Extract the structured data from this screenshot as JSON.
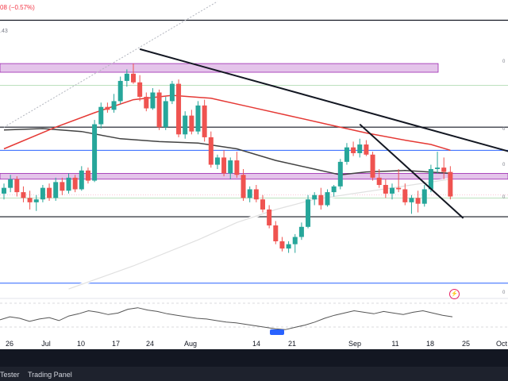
{
  "header": {
    "change_text": "08 (−0.57%)",
    "value_text": ".43"
  },
  "level_labels": [
    "0",
    "0",
    "0",
    "0",
    "0"
  ],
  "bottom_panel": {
    "tabs": [
      "Tester",
      "Trading Panel"
    ]
  },
  "colors": {
    "up": "#26a69a",
    "down": "#ef5350",
    "ma_red": "#e53935",
    "ma_dark": "#424242",
    "ma_white": "#ffffff",
    "zone": "#ce93d8"
  },
  "chart_data": {
    "type": "candlestick",
    "x_ticks": [
      "26",
      "Jul",
      "10",
      "17",
      "24",
      "Aug",
      "14",
      "21",
      "Sep",
      "11",
      "18",
      "25",
      "Oct"
    ],
    "candles": [
      [
        40.2,
        40.9,
        39.8,
        40.6
      ],
      [
        40.6,
        41.5,
        40.3,
        41.2
      ],
      [
        41.2,
        41.4,
        40.0,
        40.3
      ],
      [
        40.3,
        40.7,
        39.6,
        39.9
      ],
      [
        39.9,
        40.4,
        39.1,
        39.6
      ],
      [
        39.6,
        40.1,
        39.0,
        39.8
      ],
      [
        39.8,
        40.8,
        39.6,
        40.6
      ],
      [
        40.6,
        40.9,
        39.7,
        39.9
      ],
      [
        39.9,
        41.3,
        39.7,
        41.0
      ],
      [
        41.0,
        41.3,
        40.1,
        40.4
      ],
      [
        40.4,
        41.6,
        40.2,
        41.3
      ],
      [
        41.3,
        41.5,
        40.3,
        40.5
      ],
      [
        40.5,
        42.1,
        40.4,
        41.8
      ],
      [
        41.8,
        42.0,
        40.9,
        41.1
      ],
      [
        41.1,
        45.3,
        41.0,
        45.0
      ],
      [
        45.0,
        46.5,
        44.7,
        46.2
      ],
      [
        46.2,
        46.5,
        45.8,
        46.0
      ],
      [
        46.0,
        47.1,
        45.8,
        46.6
      ],
      [
        46.6,
        48.3,
        46.4,
        48.0
      ],
      [
        48.0,
        48.8,
        47.6,
        48.5
      ],
      [
        48.5,
        49.2,
        47.8,
        47.9
      ],
      [
        47.9,
        48.4,
        46.6,
        46.9
      ],
      [
        46.9,
        47.2,
        45.9,
        46.1
      ],
      [
        46.1,
        47.5,
        46.0,
        47.2
      ],
      [
        47.2,
        47.4,
        44.6,
        44.8
      ],
      [
        44.8,
        46.9,
        44.6,
        46.6
      ],
      [
        46.6,
        48.0,
        46.4,
        47.8
      ],
      [
        47.8,
        48.1,
        44.1,
        44.3
      ],
      [
        44.3,
        45.9,
        44.0,
        45.6
      ],
      [
        45.6,
        46.0,
        44.3,
        44.5
      ],
      [
        44.5,
        46.6,
        44.3,
        46.3
      ],
      [
        46.3,
        46.7,
        43.8,
        44.1
      ],
      [
        44.1,
        44.5,
        42.0,
        42.2
      ],
      [
        42.2,
        42.9,
        41.9,
        42.7
      ],
      [
        42.7,
        43.2,
        41.4,
        41.6
      ],
      [
        41.6,
        42.7,
        41.2,
        42.5
      ],
      [
        42.5,
        43.1,
        41.3,
        41.5
      ],
      [
        41.5,
        41.9,
        39.7,
        39.9
      ],
      [
        39.9,
        40.7,
        39.6,
        40.5
      ],
      [
        40.5,
        40.8,
        39.6,
        39.8
      ],
      [
        39.8,
        40.1,
        38.9,
        39.1
      ],
      [
        39.1,
        39.4,
        37.8,
        38.0
      ],
      [
        38.0,
        38.3,
        36.7,
        36.9
      ],
      [
        36.9,
        37.2,
        36.2,
        36.4
      ],
      [
        36.4,
        36.9,
        36.1,
        36.7
      ],
      [
        36.7,
        37.4,
        36.1,
        37.2
      ],
      [
        37.2,
        38.2,
        37.0,
        37.9
      ],
      [
        37.9,
        40.1,
        37.8,
        39.8
      ],
      [
        39.8,
        40.3,
        39.4,
        40.1
      ],
      [
        40.1,
        40.6,
        39.1,
        39.4
      ],
      [
        39.4,
        40.5,
        39.3,
        40.3
      ],
      [
        40.3,
        40.8,
        40.0,
        40.7
      ],
      [
        40.7,
        42.6,
        40.5,
        42.4
      ],
      [
        42.4,
        43.7,
        42.2,
        43.4
      ],
      [
        43.4,
        43.8,
        42.8,
        43.0
      ],
      [
        43.0,
        44.0,
        42.7,
        43.6
      ],
      [
        43.6,
        43.9,
        42.8,
        42.9
      ],
      [
        42.9,
        43.1,
        41.1,
        41.3
      ],
      [
        41.3,
        41.9,
        40.6,
        40.8
      ],
      [
        40.8,
        41.2,
        39.9,
        40.2
      ],
      [
        40.2,
        40.9,
        39.8,
        40.6
      ],
      [
        40.6,
        41.9,
        40.3,
        40.5
      ],
      [
        40.5,
        40.9,
        39.4,
        39.6
      ],
      [
        39.6,
        40.1,
        38.8,
        39.9
      ],
      [
        39.9,
        40.4,
        38.9,
        39.5
      ],
      [
        39.5,
        40.8,
        39.3,
        40.5
      ],
      [
        40.5,
        42.2,
        40.3,
        41.9
      ],
      [
        41.9,
        43.1,
        41.6,
        42.0
      ],
      [
        42.0,
        42.7,
        41.2,
        41.7
      ],
      [
        41.7,
        42.1,
        39.8,
        40.0
      ]
    ],
    "ma_red": [
      [
        0,
        43.3
      ],
      [
        8,
        44.8
      ],
      [
        14,
        45.8
      ],
      [
        20,
        46.7
      ],
      [
        26,
        47.0
      ],
      [
        32,
        46.8
      ],
      [
        38,
        46.2
      ],
      [
        44,
        45.6
      ],
      [
        50,
        45.0
      ],
      [
        56,
        44.4
      ],
      [
        62,
        43.9
      ],
      [
        66,
        43.6
      ],
      [
        69,
        43.2
      ]
    ],
    "ma_dark": [
      [
        0,
        44.6
      ],
      [
        6,
        44.7
      ],
      [
        12,
        44.5
      ],
      [
        18,
        44.0
      ],
      [
        24,
        43.8
      ],
      [
        30,
        43.7
      ],
      [
        36,
        43.3
      ],
      [
        42,
        42.5
      ],
      [
        48,
        41.9
      ],
      [
        52,
        41.5
      ],
      [
        56,
        41.7
      ],
      [
        62,
        41.8
      ],
      [
        69,
        41.6
      ]
    ],
    "ma_white": [
      [
        10,
        33.6
      ],
      [
        20,
        35.2
      ],
      [
        30,
        37.0
      ],
      [
        36,
        38.2
      ],
      [
        42,
        39.1
      ],
      [
        48,
        39.8
      ],
      [
        54,
        40.2
      ],
      [
        60,
        40.6
      ],
      [
        66,
        41.0
      ],
      [
        69,
        41.2
      ]
    ],
    "zones": [
      [
        49.2,
        48.6
      ],
      [
        41.6,
        41.2
      ]
    ],
    "h_lines_dark": [
      52.2,
      44.8,
      38.6
    ],
    "h_lines_blue": [
      43.2,
      34.0
    ],
    "h_lines_green": [
      47.7,
      39.9
    ],
    "h_line_pink": 40.1,
    "trend_lines": [
      [
        [
          21,
          50.2
        ],
        [
          79,
          43.0
        ]
      ],
      [
        [
          55,
          45.0
        ],
        [
          71,
          38.5
        ]
      ]
    ],
    "dashed_line": [
      [
        0,
        44.8
      ],
      [
        33,
        53.5
      ]
    ],
    "rsi": [
      48,
      52,
      50,
      46,
      49,
      51,
      47,
      53,
      56,
      60,
      58,
      55,
      57,
      62,
      64,
      61,
      59,
      56,
      54,
      52,
      50,
      49,
      47,
      45,
      44,
      42,
      40,
      38,
      36,
      35,
      38,
      41,
      45,
      50,
      54,
      57,
      60,
      58,
      56,
      59,
      57,
      55,
      58,
      60,
      57,
      54,
      52
    ],
    "y_range": [
      33.0,
      53.6
    ]
  }
}
